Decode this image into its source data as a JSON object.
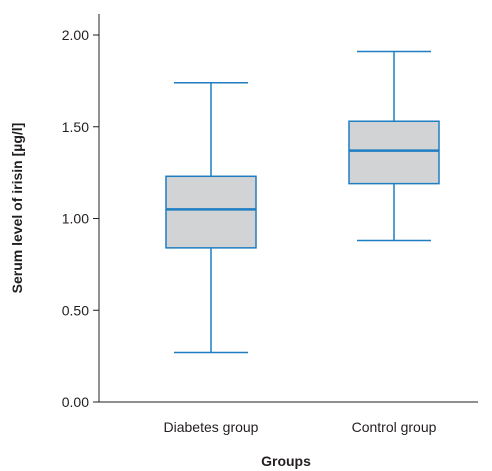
{
  "chart_data": {
    "type": "boxplot",
    "title": "",
    "xlabel": "Groups",
    "ylabel": "Serum level of irisin [µg/l]",
    "ylim": [
      0,
      2.15
    ],
    "yticks": [
      "0.00",
      "0.50",
      "1.00",
      "1.50",
      "2.00"
    ],
    "ytick_values": [
      0,
      0.5,
      1.0,
      1.5,
      2.0
    ],
    "grid": false,
    "categories": [
      "Diabetes group",
      "Control group"
    ],
    "boxes": [
      {
        "category": "Diabetes group",
        "min": 0.27,
        "q1": 0.84,
        "median": 1.05,
        "q3": 1.23,
        "max": 1.74
      },
      {
        "category": "Control group",
        "min": 0.88,
        "q1": 1.19,
        "median": 1.37,
        "q3": 1.53,
        "max": 1.91
      }
    ],
    "colors": {
      "box_fill": "#d1d3d4",
      "box_stroke": "#1f7ec2",
      "axis": "#231f20"
    }
  }
}
